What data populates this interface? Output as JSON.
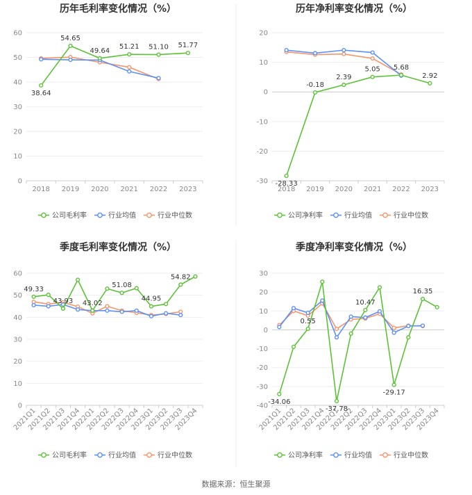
{
  "source": "数据来源：恒生聚源",
  "colors": {
    "company": "#5bc236",
    "avg": "#5b8ff9",
    "median": "#f4956a"
  },
  "legend": [
    "公司毛利率",
    "行业均值",
    "行业中位数"
  ],
  "chart_data": [
    {
      "type": "line",
      "title": "历年毛利率变化情况（%）",
      "categories": [
        "2018",
        "2019",
        "2020",
        "2021",
        "2022",
        "2023"
      ],
      "ylim": [
        0,
        60
      ],
      "yticks": [
        0,
        10,
        20,
        30,
        40,
        50,
        60
      ],
      "rotate_x": false,
      "series": [
        {
          "name": "公司毛利率",
          "values": [
            38.64,
            54.65,
            49.64,
            51.21,
            51.1,
            51.77
          ]
        },
        {
          "name": "行业均值",
          "values": [
            49.2,
            49.0,
            48.9,
            44.3,
            41.6,
            null
          ]
        },
        {
          "name": "行业中位数",
          "values": [
            49.6,
            50.1,
            48.0,
            46.0,
            41.2,
            null
          ]
        }
      ],
      "labels": [
        "38.64",
        "54.65",
        "49.64",
        "51.21",
        "51.10",
        "51.77"
      ],
      "legend": [
        "公司毛利率",
        "行业均值",
        "行业中位数"
      ]
    },
    {
      "type": "line",
      "title": "历年净利率变化情况（%）",
      "categories": [
        "2018",
        "2019",
        "2020",
        "2021",
        "2022",
        "2023"
      ],
      "ylim": [
        -30,
        20
      ],
      "yticks": [
        -30,
        -20,
        -10,
        0,
        10,
        20
      ],
      "rotate_x": false,
      "series": [
        {
          "name": "公司净利率",
          "values": [
            -28.33,
            -0.18,
            2.39,
            5.05,
            5.68,
            2.92
          ]
        },
        {
          "name": "行业均值",
          "values": [
            14.1,
            13.1,
            14.1,
            13.3,
            5.5,
            null
          ]
        },
        {
          "name": "行业中位数",
          "values": [
            13.5,
            12.6,
            12.8,
            11.3,
            5.9,
            null
          ]
        }
      ],
      "labels": [
        "-28.33",
        "-0.18",
        "2.39",
        "5.05",
        "5.68",
        "2.92"
      ],
      "legend": [
        "公司净利率",
        "行业均值",
        "行业中位数"
      ]
    },
    {
      "type": "line",
      "title": "季度毛利率变化情况（%）",
      "categories": [
        "2021Q1",
        "2021Q2",
        "2021Q3",
        "2021Q4",
        "2022Q1",
        "2022Q2",
        "2022Q3",
        "2022Q4",
        "2023Q1",
        "2023Q2",
        "2023Q3",
        "2023Q4"
      ],
      "ylim": [
        0,
        60
      ],
      "yticks": [
        0,
        10,
        20,
        30,
        40,
        50,
        60
      ],
      "rotate_x": true,
      "series": [
        {
          "name": "公司毛利率",
          "values": [
            49.33,
            50.2,
            43.93,
            57.0,
            43.02,
            53.0,
            51.08,
            53.2,
            44.95,
            46.0,
            54.82,
            58.5
          ]
        },
        {
          "name": "行业均值",
          "values": [
            45.5,
            45.0,
            45.8,
            43.5,
            43.0,
            43.0,
            42.5,
            43.0,
            40.5,
            41.8,
            41.0,
            null
          ]
        },
        {
          "name": "行业中位数",
          "values": [
            47.0,
            46.0,
            46.8,
            44.8,
            41.8,
            45.0,
            43.0,
            42.0,
            41.0,
            41.5,
            42.5,
            null
          ]
        }
      ],
      "labels": [
        "49.33",
        "",
        "43.93",
        "",
        "43.02",
        "",
        "51.08",
        "",
        "44.95",
        "",
        "54.82",
        ""
      ],
      "legend": [
        "公司毛利率",
        "行业均值",
        "行业中位数"
      ]
    },
    {
      "type": "line",
      "title": "季度净利率变化情况（%）",
      "categories": [
        "2021Q1",
        "2021Q2",
        "2021Q3",
        "2021Q4",
        "2022Q1",
        "2022Q2",
        "2022Q3",
        "2022Q4",
        "2023Q1",
        "2023Q2",
        "2023Q3",
        "2023Q4"
      ],
      "ylim": [
        -40,
        30
      ],
      "yticks": [
        -40,
        -30,
        -20,
        -10,
        0,
        10,
        20,
        30
      ],
      "rotate_x": true,
      "series": [
        {
          "name": "公司净利率",
          "values": [
            -34.06,
            -9.0,
            0.55,
            25.5,
            -37.78,
            -2.0,
            10.47,
            22.5,
            -29.17,
            -4.0,
            16.35,
            12.0
          ]
        },
        {
          "name": "行业均值",
          "values": [
            1.5,
            11.5,
            9.0,
            15.5,
            -4.0,
            7.0,
            6.5,
            9.8,
            -1.5,
            2.0,
            2.2,
            null
          ]
        },
        {
          "name": "行业中位数",
          "values": [
            2.5,
            10.0,
            7.5,
            14.0,
            0.5,
            5.5,
            6.0,
            8.5,
            1.0,
            2.2,
            2.0,
            null
          ]
        }
      ],
      "labels": [
        "-34.06",
        "",
        "0.55",
        "",
        "-37.78",
        "",
        "10.47",
        "",
        "-29.17",
        "",
        "16.35",
        ""
      ],
      "legend": [
        "公司净利率",
        "行业均值",
        "行业中位数"
      ]
    }
  ]
}
